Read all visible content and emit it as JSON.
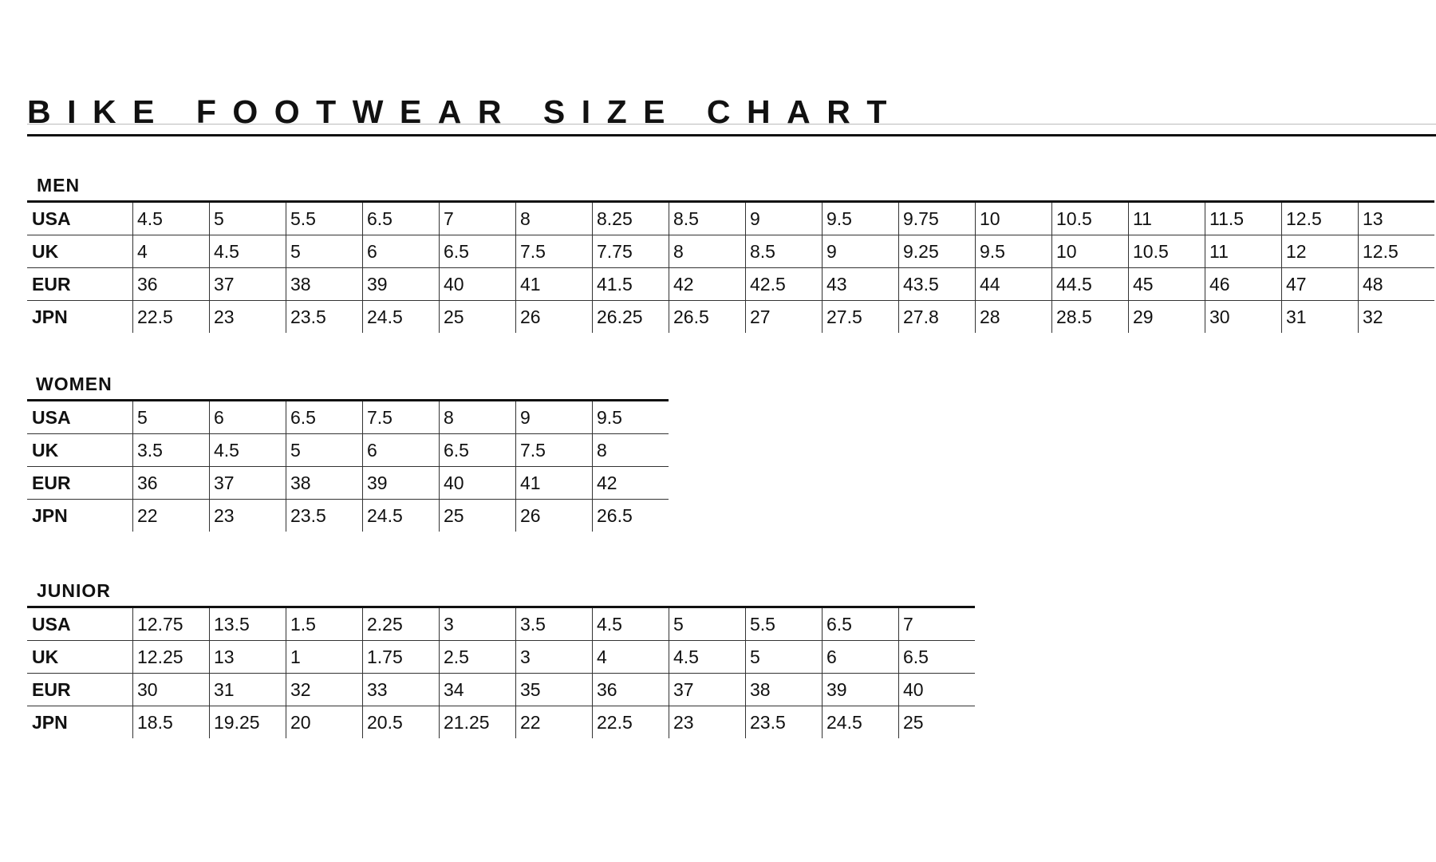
{
  "title": "BIKE FOOTWEAR SIZE CHART",
  "sections": [
    {
      "label": "MEN",
      "rows": [
        {
          "label": "USA",
          "values": [
            "4.5",
            "5",
            "5.5",
            "6.5",
            "7",
            "8",
            "8.25",
            "8.5",
            "9",
            "9.5",
            "9.75",
            "10",
            "10.5",
            "11",
            "11.5",
            "12.5",
            "13"
          ]
        },
        {
          "label": "UK",
          "values": [
            "4",
            "4.5",
            "5",
            "6",
            "6.5",
            "7.5",
            "7.75",
            "8",
            "8.5",
            "9",
            "9.25",
            "9.5",
            "10",
            "10.5",
            "11",
            "12",
            "12.5"
          ]
        },
        {
          "label": "EUR",
          "values": [
            "36",
            "37",
            "38",
            "39",
            "40",
            "41",
            "41.5",
            "42",
            "42.5",
            "43",
            "43.5",
            "44",
            "44.5",
            "45",
            "46",
            "47",
            "48"
          ]
        },
        {
          "label": "JPN",
          "values": [
            "22.5",
            "23",
            "23.5",
            "24.5",
            "25",
            "26",
            "26.25",
            "26.5",
            "27",
            "27.5",
            "27.8",
            "28",
            "28.5",
            "29",
            "30",
            "31",
            "32"
          ]
        }
      ]
    },
    {
      "label": "WOMEN",
      "rows": [
        {
          "label": "USA",
          "values": [
            "5",
            "6",
            "6.5",
            "7.5",
            "8",
            "9",
            "9.5"
          ]
        },
        {
          "label": "UK",
          "values": [
            "3.5",
            "4.5",
            "5",
            "6",
            "6.5",
            "7.5",
            "8"
          ]
        },
        {
          "label": "EUR",
          "values": [
            "36",
            "37",
            "38",
            "39",
            "40",
            "41",
            "42"
          ]
        },
        {
          "label": "JPN",
          "values": [
            "22",
            "23",
            "23.5",
            "24.5",
            "25",
            "26",
            "26.5"
          ]
        }
      ]
    },
    {
      "label": "JUNIOR",
      "rows": [
        {
          "label": "USA",
          "values": [
            "12.75",
            "13.5",
            "1.5",
            "2.25",
            "3",
            "3.5",
            "4.5",
            "5",
            "5.5",
            "6.5",
            "7"
          ]
        },
        {
          "label": "UK",
          "values": [
            "12.25",
            "13",
            "1",
            "1.75",
            "2.5",
            "3",
            "4",
            "4.5",
            "5",
            "6",
            "6.5"
          ]
        },
        {
          "label": "EUR",
          "values": [
            "30",
            "31",
            "32",
            "33",
            "34",
            "35",
            "36",
            "37",
            "38",
            "39",
            "40"
          ]
        },
        {
          "label": "JPN",
          "values": [
            "18.5",
            "19.25",
            "20",
            "20.5",
            "21.25",
            "22",
            "22.5",
            "23",
            "23.5",
            "24.5",
            "25"
          ]
        }
      ]
    }
  ]
}
